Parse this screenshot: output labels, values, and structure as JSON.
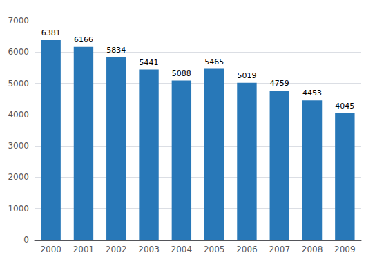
{
  "chart_data": {
    "type": "bar",
    "categories": [
      "2000",
      "2001",
      "2002",
      "2003",
      "2004",
      "2005",
      "2006",
      "2007",
      "2008",
      "2009"
    ],
    "values": [
      6381,
      6166,
      5834,
      5441,
      5088,
      5465,
      5019,
      4759,
      4453,
      4045
    ],
    "color": "#2878B8",
    "ylim": [
      0,
      7000
    ],
    "yticks": [
      0,
      1000,
      2000,
      3000,
      4000,
      5000,
      6000,
      7000
    ],
    "grid": true,
    "data_labels": true
  }
}
